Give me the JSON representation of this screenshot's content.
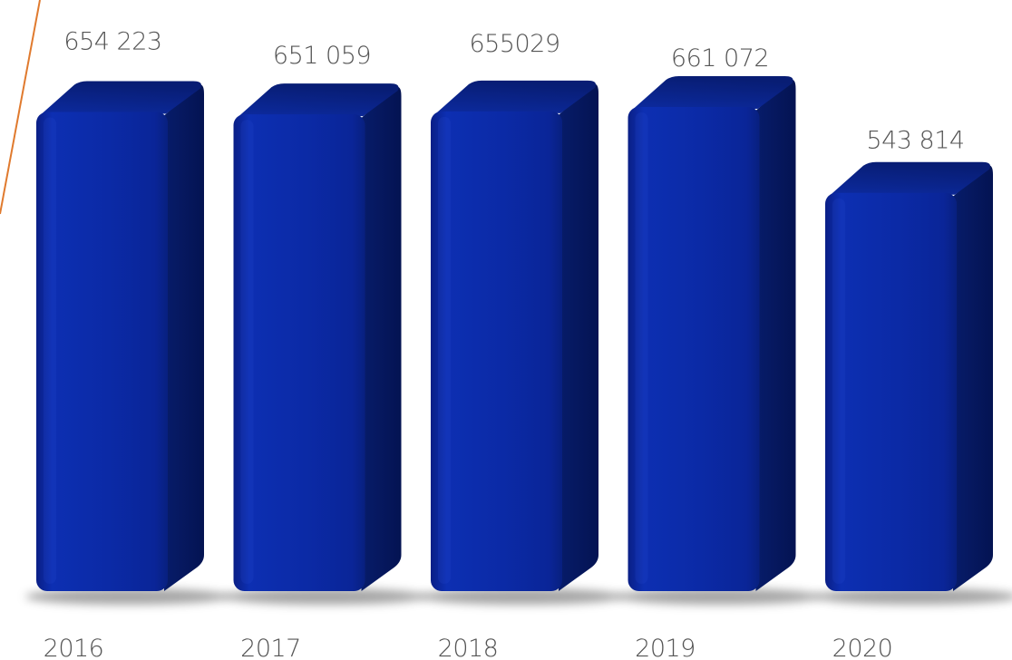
{
  "chart_data": {
    "type": "bar",
    "categories": [
      "2016",
      "2017",
      "2018",
      "2019",
      "2020"
    ],
    "values": [
      654223,
      651059,
      655029,
      661072,
      543814
    ],
    "value_labels": [
      "654 223",
      "651 059",
      "655029",
      "661 072",
      "543 814"
    ],
    "title": "",
    "xlabel": "",
    "ylabel": "",
    "ylim": [
      0,
      661072
    ],
    "grid": false,
    "legend": "none",
    "colors": {
      "bar_front": "#0a2aa8",
      "bar_side": "#06195e",
      "bar_top": "#0b238c",
      "accent_line": "#e07a2e",
      "text": "#555555"
    }
  }
}
